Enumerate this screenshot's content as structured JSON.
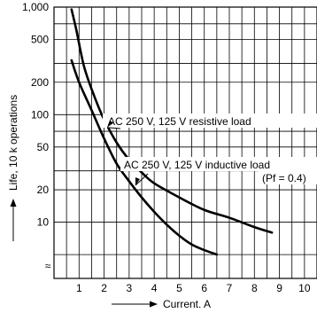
{
  "chart_data": {
    "type": "line",
    "xlabel": "Current. A",
    "ylabel": "Life, 10 k operations",
    "x_scale": "linear",
    "y_scale": "log",
    "xlim": [
      0,
      10.5
    ],
    "ylim": [
      3,
      1000
    ],
    "x_ticks": [
      1,
      2,
      3,
      4,
      5,
      6,
      7,
      8,
      9,
      10
    ],
    "x_tick_labels": [
      "1",
      "2",
      "3",
      "4",
      "5",
      "6",
      "7",
      "8",
      "9",
      "10"
    ],
    "y_ticks": [
      10,
      20,
      50,
      100,
      200,
      500,
      1000
    ],
    "y_tick_labels": [
      "10",
      "20",
      "50",
      "100",
      "200",
      "500",
      "1,000"
    ],
    "axis_break_symbol": "≈",
    "grid": true,
    "series": [
      {
        "name": "AC 250 V, 125 V resistive load",
        "label_lines": [
          "AC 250 V, 125 V resistive load"
        ],
        "x": [
          0.7,
          0.9,
          1.2,
          1.6,
          2.0,
          2.5,
          3.0,
          3.5,
          4.0,
          5.0,
          6.0,
          7.0,
          8.0,
          8.7
        ],
        "y": [
          950,
          600,
          280,
          150,
          90,
          55,
          38,
          29,
          23,
          17,
          13,
          11,
          9,
          8
        ]
      },
      {
        "name": "AC 250 V, 125 V inductive load (Pf = 0.4)",
        "label_lines": [
          "AC 250 V, 125 V inductive load",
          "(Pf = 0.4)"
        ],
        "x": [
          0.7,
          1.0,
          1.5,
          2.0,
          2.5,
          3.0,
          3.5,
          4.0,
          4.5,
          5.0,
          5.5,
          6.0,
          6.5
        ],
        "y": [
          320,
          200,
          110,
          60,
          35,
          24,
          17,
          12.5,
          9.5,
          7.5,
          6.2,
          5.5,
          5.0
        ]
      }
    ]
  }
}
